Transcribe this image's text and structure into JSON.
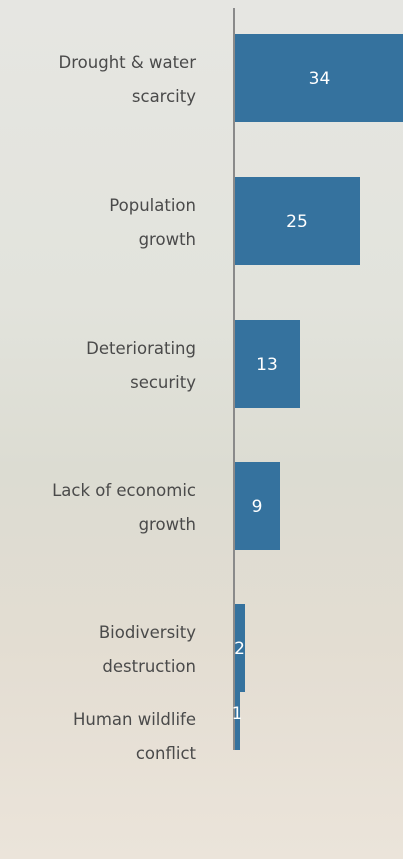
{
  "chart_data": {
    "type": "bar",
    "orientation": "horizontal",
    "categories": [
      "Drought & water\nscarcity",
      "Population\ngrowth",
      "Deteriorating\nsecurity",
      "Lack of economic\ngrowth",
      "Biodiversity\ndestruction",
      "Human wildlife\nconflict"
    ],
    "values": [
      34,
      25,
      13,
      9,
      2,
      1
    ],
    "color": "#35729e"
  }
}
